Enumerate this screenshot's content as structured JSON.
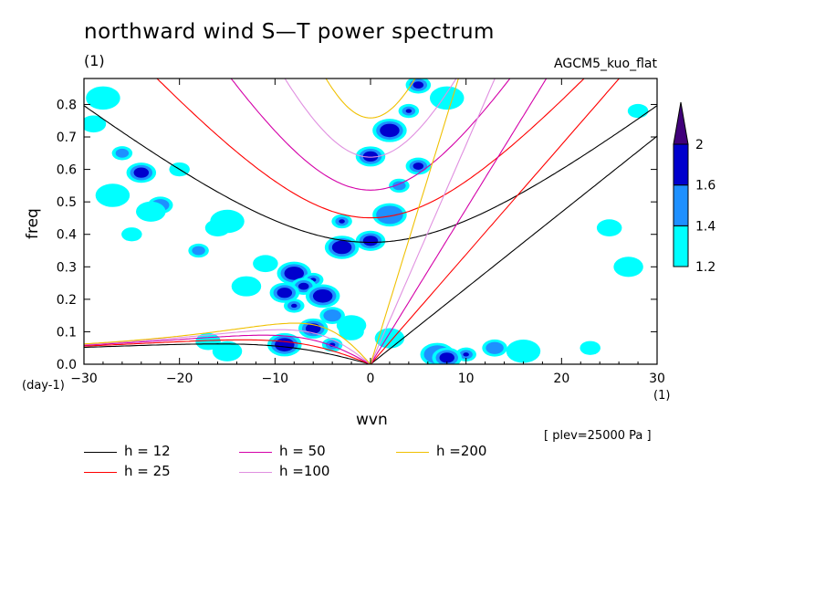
{
  "chart_data": {
    "type": "heatmap",
    "title": "northward wind S—T power spectrum",
    "subtitle": "(1)",
    "model_label": "AGCM5_kuo_flat",
    "xlabel": "wvn",
    "ylabel": "freq",
    "x_unit_left": "(day-1)",
    "x_unit_right": "(1)",
    "level_note": "[ plev=25000 Pa ]",
    "xlim": [
      -30,
      30
    ],
    "ylim": [
      0,
      0.88
    ],
    "x_ticks": [
      -30,
      -20,
      -10,
      0,
      10,
      20,
      30
    ],
    "y_ticks": [
      0.0,
      0.1,
      0.2,
      0.3,
      0.4,
      0.5,
      0.6,
      0.7,
      0.8
    ],
    "colorbar": {
      "levels": [
        1.2,
        1.4,
        1.6,
        2
      ],
      "colors": [
        "#00ffff",
        "#1e90ff",
        "#0000cd",
        "#2a0088"
      ],
      "extend_color": "#40007a"
    },
    "contour_patches": [
      {
        "x": -26,
        "y": 0.65,
        "level": 1.4
      },
      {
        "x": -29,
        "y": 0.74,
        "level": 1.2
      },
      {
        "x": -24,
        "y": 0.59,
        "level": 1.6
      },
      {
        "x": -27,
        "y": 0.52,
        "level": 1.2
      },
      {
        "x": -20,
        "y": 0.6,
        "level": 1.2
      },
      {
        "x": -22,
        "y": 0.49,
        "level": 1.4
      },
      {
        "x": -23,
        "y": 0.47,
        "level": 1.2
      },
      {
        "x": -15,
        "y": 0.44,
        "level": 1.2
      },
      {
        "x": -18,
        "y": 0.35,
        "level": 1.4
      },
      {
        "x": -11,
        "y": 0.31,
        "level": 1.2
      },
      {
        "x": -13,
        "y": 0.24,
        "level": 1.2
      },
      {
        "x": -8,
        "y": 0.28,
        "level": 1.6
      },
      {
        "x": -6,
        "y": 0.26,
        "level": 1.6
      },
      {
        "x": -7,
        "y": 0.24,
        "level": 1.6
      },
      {
        "x": -9,
        "y": 0.22,
        "level": 1.6
      },
      {
        "x": -5,
        "y": 0.21,
        "level": 1.6
      },
      {
        "x": -8,
        "y": 0.18,
        "level": 1.6
      },
      {
        "x": -4,
        "y": 0.15,
        "level": 1.4
      },
      {
        "x": -6,
        "y": 0.11,
        "level": 1.6
      },
      {
        "x": -9,
        "y": 0.06,
        "level": 1.6
      },
      {
        "x": -4,
        "y": 0.06,
        "level": 1.6
      },
      {
        "x": -2,
        "y": 0.1,
        "level": 1.2
      },
      {
        "x": -15,
        "y": 0.04,
        "level": 1.2
      },
      {
        "x": -3,
        "y": 0.36,
        "level": 1.6
      },
      {
        "x": -3,
        "y": 0.44,
        "level": 1.6
      },
      {
        "x": -16,
        "y": 0.42,
        "level": 1.2
      },
      {
        "x": 0,
        "y": 0.38,
        "level": 1.6
      },
      {
        "x": 2,
        "y": 0.46,
        "level": 1.4
      },
      {
        "x": 3,
        "y": 0.55,
        "level": 1.4
      },
      {
        "x": 5,
        "y": 0.61,
        "level": 1.6
      },
      {
        "x": 0,
        "y": 0.64,
        "level": 1.6
      },
      {
        "x": 2,
        "y": 0.72,
        "level": 1.6
      },
      {
        "x": 4,
        "y": 0.78,
        "level": 1.6
      },
      {
        "x": 5,
        "y": 0.86,
        "level": 1.6
      },
      {
        "x": -2,
        "y": 0.12,
        "level": 1.2
      },
      {
        "x": 7,
        "y": 0.03,
        "level": 1.4
      },
      {
        "x": 10,
        "y": 0.03,
        "level": 1.6
      },
      {
        "x": 13,
        "y": 0.05,
        "level": 1.4
      },
      {
        "x": 8,
        "y": 0.02,
        "level": 1.6
      },
      {
        "x": 16,
        "y": 0.04,
        "level": 1.2
      },
      {
        "x": 23,
        "y": 0.05,
        "level": 1.2
      },
      {
        "x": 25,
        "y": 0.42,
        "level": 1.2
      },
      {
        "x": 27,
        "y": 0.3,
        "level": 1.2
      },
      {
        "x": -28,
        "y": 0.82,
        "level": 1.2
      },
      {
        "x": -25,
        "y": 0.4,
        "level": 1.2
      },
      {
        "x": -17,
        "y": 0.07,
        "level": 1.2
      },
      {
        "x": 2,
        "y": 0.08,
        "level": 1.2
      },
      {
        "x": 8,
        "y": 0.82,
        "level": 1.2
      },
      {
        "x": 28,
        "y": 0.78,
        "level": 1.2
      }
    ],
    "dispersion_curves": [
      {
        "name": "h = 12",
        "h": 12,
        "color": "#000000"
      },
      {
        "name": "h = 25",
        "h": 25,
        "color": "#ff0000"
      },
      {
        "name": "h = 50",
        "h": 50,
        "color": "#d400a8"
      },
      {
        "name": "h =100",
        "h": 100,
        "color": "#e090e0"
      },
      {
        "name": "h =200",
        "h": 200,
        "color": "#f0c000"
      }
    ]
  }
}
